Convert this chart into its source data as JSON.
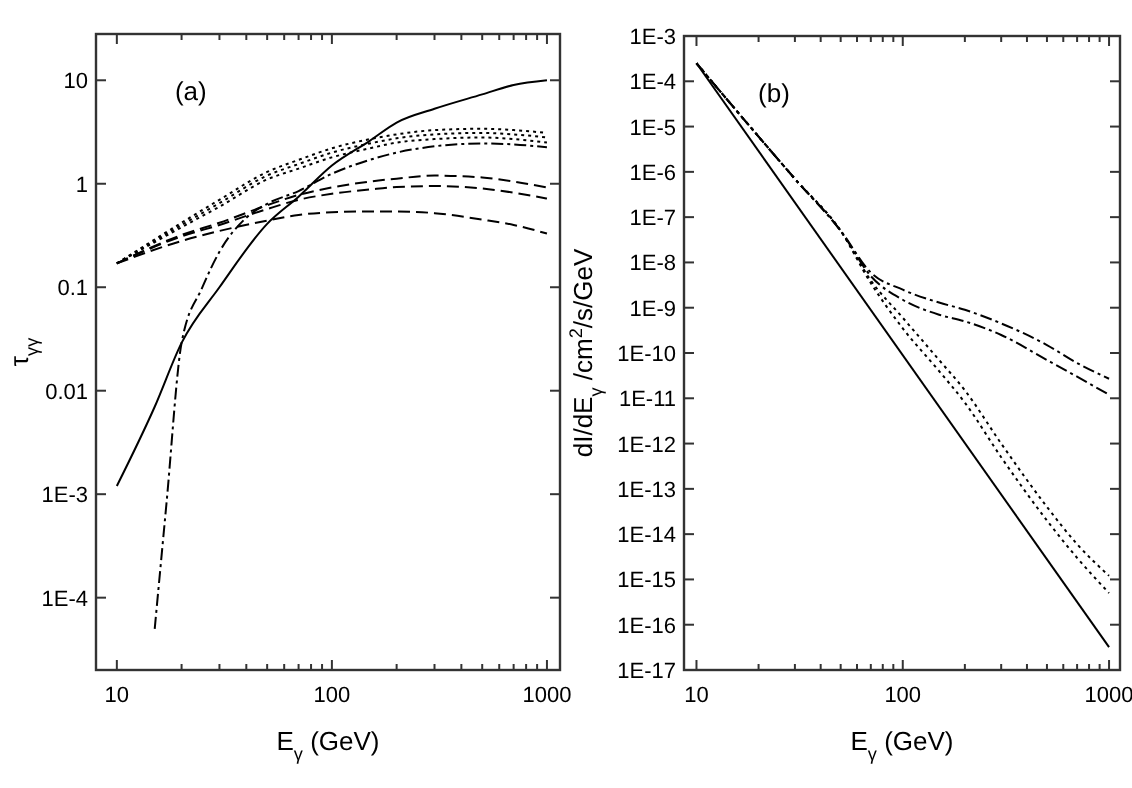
{
  "chart_data": [
    {
      "type": "line",
      "title": "(a)",
      "xlabel": "E$_{γ}$ (GeV)",
      "ylabel": "τ$_{γγ}$",
      "log": "xy",
      "grid": false,
      "marker": "none",
      "xlim": [
        8,
        1150
      ],
      "ylim": [
        2e-05,
        28
      ],
      "xticks": [
        10,
        {
          "value": 20,
          "label": null
        },
        {
          "value": 30,
          "label": null
        },
        {
          "value": 40,
          "label": null
        },
        {
          "value": 50,
          "label": null
        },
        {
          "value": 60,
          "label": null
        },
        {
          "value": 70,
          "label": null
        },
        {
          "value": 80,
          "label": null
        },
        {
          "value": 90,
          "label": null
        },
        100,
        {
          "value": 200,
          "label": null
        },
        {
          "value": 300,
          "label": null
        },
        {
          "value": 400,
          "label": null
        },
        {
          "value": 500,
          "label": null
        },
        {
          "value": 600,
          "label": null
        },
        {
          "value": 700,
          "label": null
        },
        {
          "value": 800,
          "label": null
        },
        {
          "value": 900,
          "label": null
        },
        1000
      ],
      "yticks": [
        {
          "value": 0.0001,
          "label": "1E-4"
        },
        {
          "value": 0.001,
          "label": "1E-3"
        },
        0.01,
        0.1,
        1,
        10
      ],
      "series": [
        {
          "color": "#000000",
          "line_style": "solid",
          "x": [
            10,
            15,
            20,
            30,
            50,
            70,
            100,
            150,
            200,
            300,
            500,
            700,
            1000
          ],
          "values": [
            0.0012,
            0.007,
            0.029,
            0.1,
            0.41,
            0.75,
            1.5,
            2.6,
            3.9,
            5.3,
            7.3,
            9,
            10
          ]
        },
        {
          "color": "#000000",
          "line_style": "dashdot",
          "x": [
            15,
            17,
            20,
            25,
            30,
            40,
            50,
            70,
            100,
            150,
            200,
            300,
            500,
            700,
            1000
          ],
          "values": [
            5e-05,
            0.0008,
            0.029,
            0.1,
            0.22,
            0.47,
            0.64,
            0.85,
            1.25,
            1.7,
            2.0,
            2.3,
            2.45,
            2.4,
            2.25
          ]
        },
        {
          "color": "#000000",
          "line_style": "dotted",
          "x": [
            10,
            20,
            30,
            50,
            70,
            100,
            150,
            200,
            300,
            500,
            700,
            1000
          ],
          "values": [
            0.17,
            0.42,
            0.7,
            1.3,
            1.7,
            2.2,
            2.7,
            3.0,
            3.3,
            3.4,
            3.3,
            3.1
          ]
        },
        {
          "color": "#000000",
          "line_style": "dotted",
          "x": [
            10,
            20,
            30,
            50,
            70,
            100,
            150,
            200,
            300,
            500,
            700,
            1000
          ],
          "values": [
            0.17,
            0.4,
            0.65,
            1.2,
            1.55,
            2.0,
            2.45,
            2.75,
            3.0,
            3.1,
            3.0,
            2.8
          ]
        },
        {
          "color": "#000000",
          "line_style": "dotted",
          "x": [
            10,
            20,
            30,
            50,
            70,
            100,
            150,
            200,
            300,
            500,
            700,
            1000
          ],
          "values": [
            0.17,
            0.38,
            0.6,
            1.1,
            1.4,
            1.8,
            2.2,
            2.5,
            2.7,
            2.8,
            2.7,
            2.5
          ]
        },
        {
          "color": "#000000",
          "line_style": "dashed",
          "x": [
            10,
            20,
            30,
            50,
            70,
            100,
            150,
            200,
            300,
            500,
            700,
            1000
          ],
          "values": [
            0.17,
            0.32,
            0.42,
            0.62,
            0.78,
            0.92,
            1.05,
            1.12,
            1.2,
            1.15,
            1.05,
            0.92
          ]
        },
        {
          "color": "#000000",
          "line_style": "dashed",
          "x": [
            10,
            20,
            30,
            50,
            70,
            100,
            150,
            200,
            300,
            500,
            700,
            1000
          ],
          "values": [
            0.17,
            0.31,
            0.4,
            0.57,
            0.7,
            0.8,
            0.88,
            0.93,
            0.95,
            0.9,
            0.82,
            0.72
          ]
        },
        {
          "color": "#000000",
          "line_style": "dashed",
          "x": [
            10,
            20,
            30,
            50,
            70,
            100,
            150,
            200,
            300,
            500,
            700,
            1000
          ],
          "values": [
            0.17,
            0.28,
            0.35,
            0.44,
            0.5,
            0.53,
            0.54,
            0.54,
            0.52,
            0.45,
            0.4,
            0.33
          ]
        }
      ]
    },
    {
      "type": "line",
      "title": "(b)",
      "xlabel": "E$_{γ}$ (GeV)",
      "ylabel": "dI/dE$_{γ}$ /cm$^{2}$/s/GeV",
      "log": "xy",
      "grid": false,
      "marker": "none",
      "xlim": [
        8.7,
        1130
      ],
      "ylim": [
        1e-17,
        0.001
      ],
      "xticks": [
        10,
        {
          "value": 20,
          "label": null
        },
        {
          "value": 30,
          "label": null
        },
        {
          "value": 40,
          "label": null
        },
        {
          "value": 50,
          "label": null
        },
        {
          "value": 60,
          "label": null
        },
        {
          "value": 70,
          "label": null
        },
        {
          "value": 80,
          "label": null
        },
        {
          "value": 90,
          "label": null
        },
        100,
        {
          "value": 200,
          "label": null
        },
        {
          "value": 300,
          "label": null
        },
        {
          "value": 400,
          "label": null
        },
        {
          "value": 500,
          "label": null
        },
        {
          "value": 600,
          "label": null
        },
        {
          "value": 700,
          "label": null
        },
        {
          "value": 800,
          "label": null
        },
        {
          "value": 900,
          "label": null
        },
        1000
      ],
      "yticks": [
        {
          "value": 1e-17,
          "label": "1E-17"
        },
        {
          "value": 1e-16,
          "label": "1E-16"
        },
        {
          "value": 1e-15,
          "label": "1E-15"
        },
        {
          "value": 1e-14,
          "label": "1E-14"
        },
        {
          "value": 1e-13,
          "label": "1E-13"
        },
        {
          "value": 1e-12,
          "label": "1E-12"
        },
        {
          "value": 1e-11,
          "label": "1E-11"
        },
        {
          "value": 1e-10,
          "label": "1E-10"
        },
        {
          "value": 1e-09,
          "label": "1E-9"
        },
        {
          "value": 1e-08,
          "label": "1E-8"
        },
        {
          "value": 1e-07,
          "label": "1E-7"
        },
        {
          "value": 1e-06,
          "label": "1E-6"
        },
        {
          "value": 1e-05,
          "label": "1E-5"
        },
        {
          "value": 0.0001,
          "label": "1E-4"
        },
        {
          "value": 0.001,
          "label": "1E-3"
        }
      ],
      "series": [
        {
          "color": "#000000",
          "line_style": "solid",
          "x": [
            10,
            1000
          ],
          "values": [
            0.00025,
            3.2e-17
          ]
        },
        {
          "color": "#000000",
          "line_style": "dashdot",
          "x": [
            10,
            20,
            30,
            50,
            70,
            100,
            150,
            200,
            300,
            500,
            700,
            1000
          ],
          "values": [
            0.00025,
            6e-06,
            7e-07,
            5e-08,
            6e-09,
            2.5e-09,
            1.3e-09,
            9e-10,
            4.5e-10,
            1.5e-10,
            6e-11,
            2.7e-11
          ]
        },
        {
          "color": "#000000",
          "line_style": "dashdot",
          "x": [
            10,
            20,
            30,
            50,
            70,
            100,
            150,
            200,
            300,
            500,
            700,
            1000
          ],
          "values": [
            0.00025,
            6e-06,
            7e-07,
            5e-08,
            5e-09,
            1.5e-09,
            7e-10,
            5e-10,
            2.5e-10,
            7e-11,
            3e-11,
            1.2e-11
          ]
        },
        {
          "color": "#000000",
          "line_style": "dotted",
          "x": [
            10,
            20,
            30,
            50,
            70,
            100,
            150,
            200,
            300,
            500,
            700,
            1000
          ],
          "values": [
            0.00025,
            6e-06,
            7e-07,
            5e-08,
            4e-09,
            6e-10,
            7e-11,
            1.5e-11,
            1e-12,
            4e-14,
            6e-15,
            1.2e-15
          ]
        },
        {
          "color": "#000000",
          "line_style": "dotted",
          "x": [
            10,
            20,
            30,
            50,
            70,
            100,
            150,
            200,
            300,
            500,
            700,
            1000
          ],
          "values": [
            0.00025,
            6e-06,
            7e-07,
            5e-08,
            3.5e-09,
            3.5e-10,
            4e-11,
            8e-12,
            5e-13,
            2e-14,
            3e-15,
            5e-16
          ]
        }
      ]
    }
  ]
}
